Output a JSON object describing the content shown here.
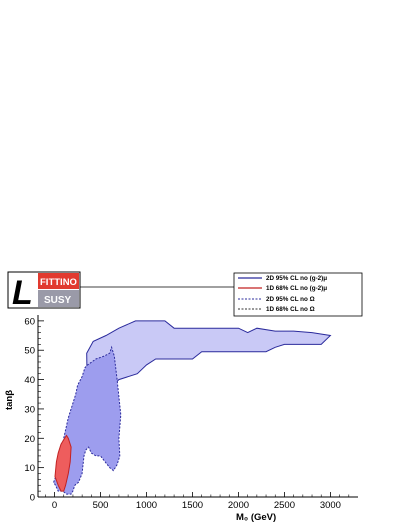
{
  "chart_data": {
    "type": "area",
    "xlabel": "M₀ (GeV)",
    "ylabel": "tanβ",
    "xlim": [
      -180,
      3300
    ],
    "ylim": [
      0,
      62
    ],
    "xticks": [
      0,
      500,
      1000,
      1500,
      2000,
      2500,
      3000
    ],
    "yticks": [
      0,
      10,
      20,
      30,
      40,
      50,
      60
    ],
    "grid": false,
    "legend_position": "top-right, outside above plot",
    "logo": {
      "top_text": "FITTINO",
      "bottom_text": "SUSY",
      "letter": "L"
    },
    "series": [
      {
        "name": "2D 95% CL   no (g-2)μ",
        "style": "solid",
        "line_color": "#2b2b9c",
        "fill_color": "#c9c9f6",
        "x": [
          350,
          420,
          560,
          700,
          880,
          1000,
          1200,
          1300,
          1400,
          1500,
          1600,
          1800,
          2000,
          2100,
          2200,
          2400,
          2600,
          2800,
          3000,
          2900,
          2700,
          2500,
          2400,
          2300,
          2100,
          2000,
          1800,
          1600,
          1500,
          1300,
          1100,
          1000,
          900,
          700,
          600,
          550,
          480,
          420,
          360
        ],
        "y": [
          49,
          53,
          55,
          57.5,
          60,
          60,
          60,
          57.5,
          57.5,
          57.5,
          57.5,
          57.5,
          57.5,
          56,
          57.5,
          56.5,
          56.5,
          56,
          55,
          52,
          52,
          52,
          51,
          49.5,
          49.5,
          49.5,
          49.5,
          49.5,
          47,
          47,
          47,
          45,
          42,
          40,
          37,
          35,
          33,
          28,
          25
        ]
      },
      {
        "name": "1D 68% CL   no (g-2)μ",
        "style": "solid",
        "line_color": "#c22222",
        "fill_color": "#ee5d5d",
        "x": [
          5,
          20,
          40,
          70,
          100,
          130,
          150,
          180,
          170,
          150,
          120,
          100,
          70,
          40
        ],
        "y": [
          7,
          12,
          15,
          18,
          19.5,
          21,
          20,
          17,
          12,
          8,
          4,
          2,
          2,
          4
        ]
      },
      {
        "name": "2D 95% CL   no Ω",
        "style": "dashed",
        "line_color": "#2b2b9c",
        "fill_color": "#9d9dee",
        "x": [
          -10,
          50,
          100,
          150,
          180,
          230,
          250,
          300,
          330,
          360,
          450,
          540,
          600,
          620,
          650,
          680,
          720,
          700,
          710,
          680,
          640,
          600,
          550,
          500,
          450,
          400,
          370,
          340,
          320,
          300,
          260,
          220,
          200,
          180,
          130,
          90,
          40,
          10
        ],
        "y": [
          5,
          10,
          20,
          27,
          30,
          35,
          38,
          41,
          44,
          45,
          47,
          48,
          49,
          51,
          48,
          40,
          28,
          20,
          14,
          11,
          9,
          10,
          12,
          14,
          14,
          15,
          17,
          16,
          14,
          8,
          5,
          4,
          2,
          1,
          1,
          2,
          2,
          4
        ]
      },
      {
        "name": "1D 68% CL   no Ω",
        "style": "dashed",
        "line_color": "#333333",
        "fill_color": "none",
        "x": [],
        "y": []
      }
    ]
  }
}
